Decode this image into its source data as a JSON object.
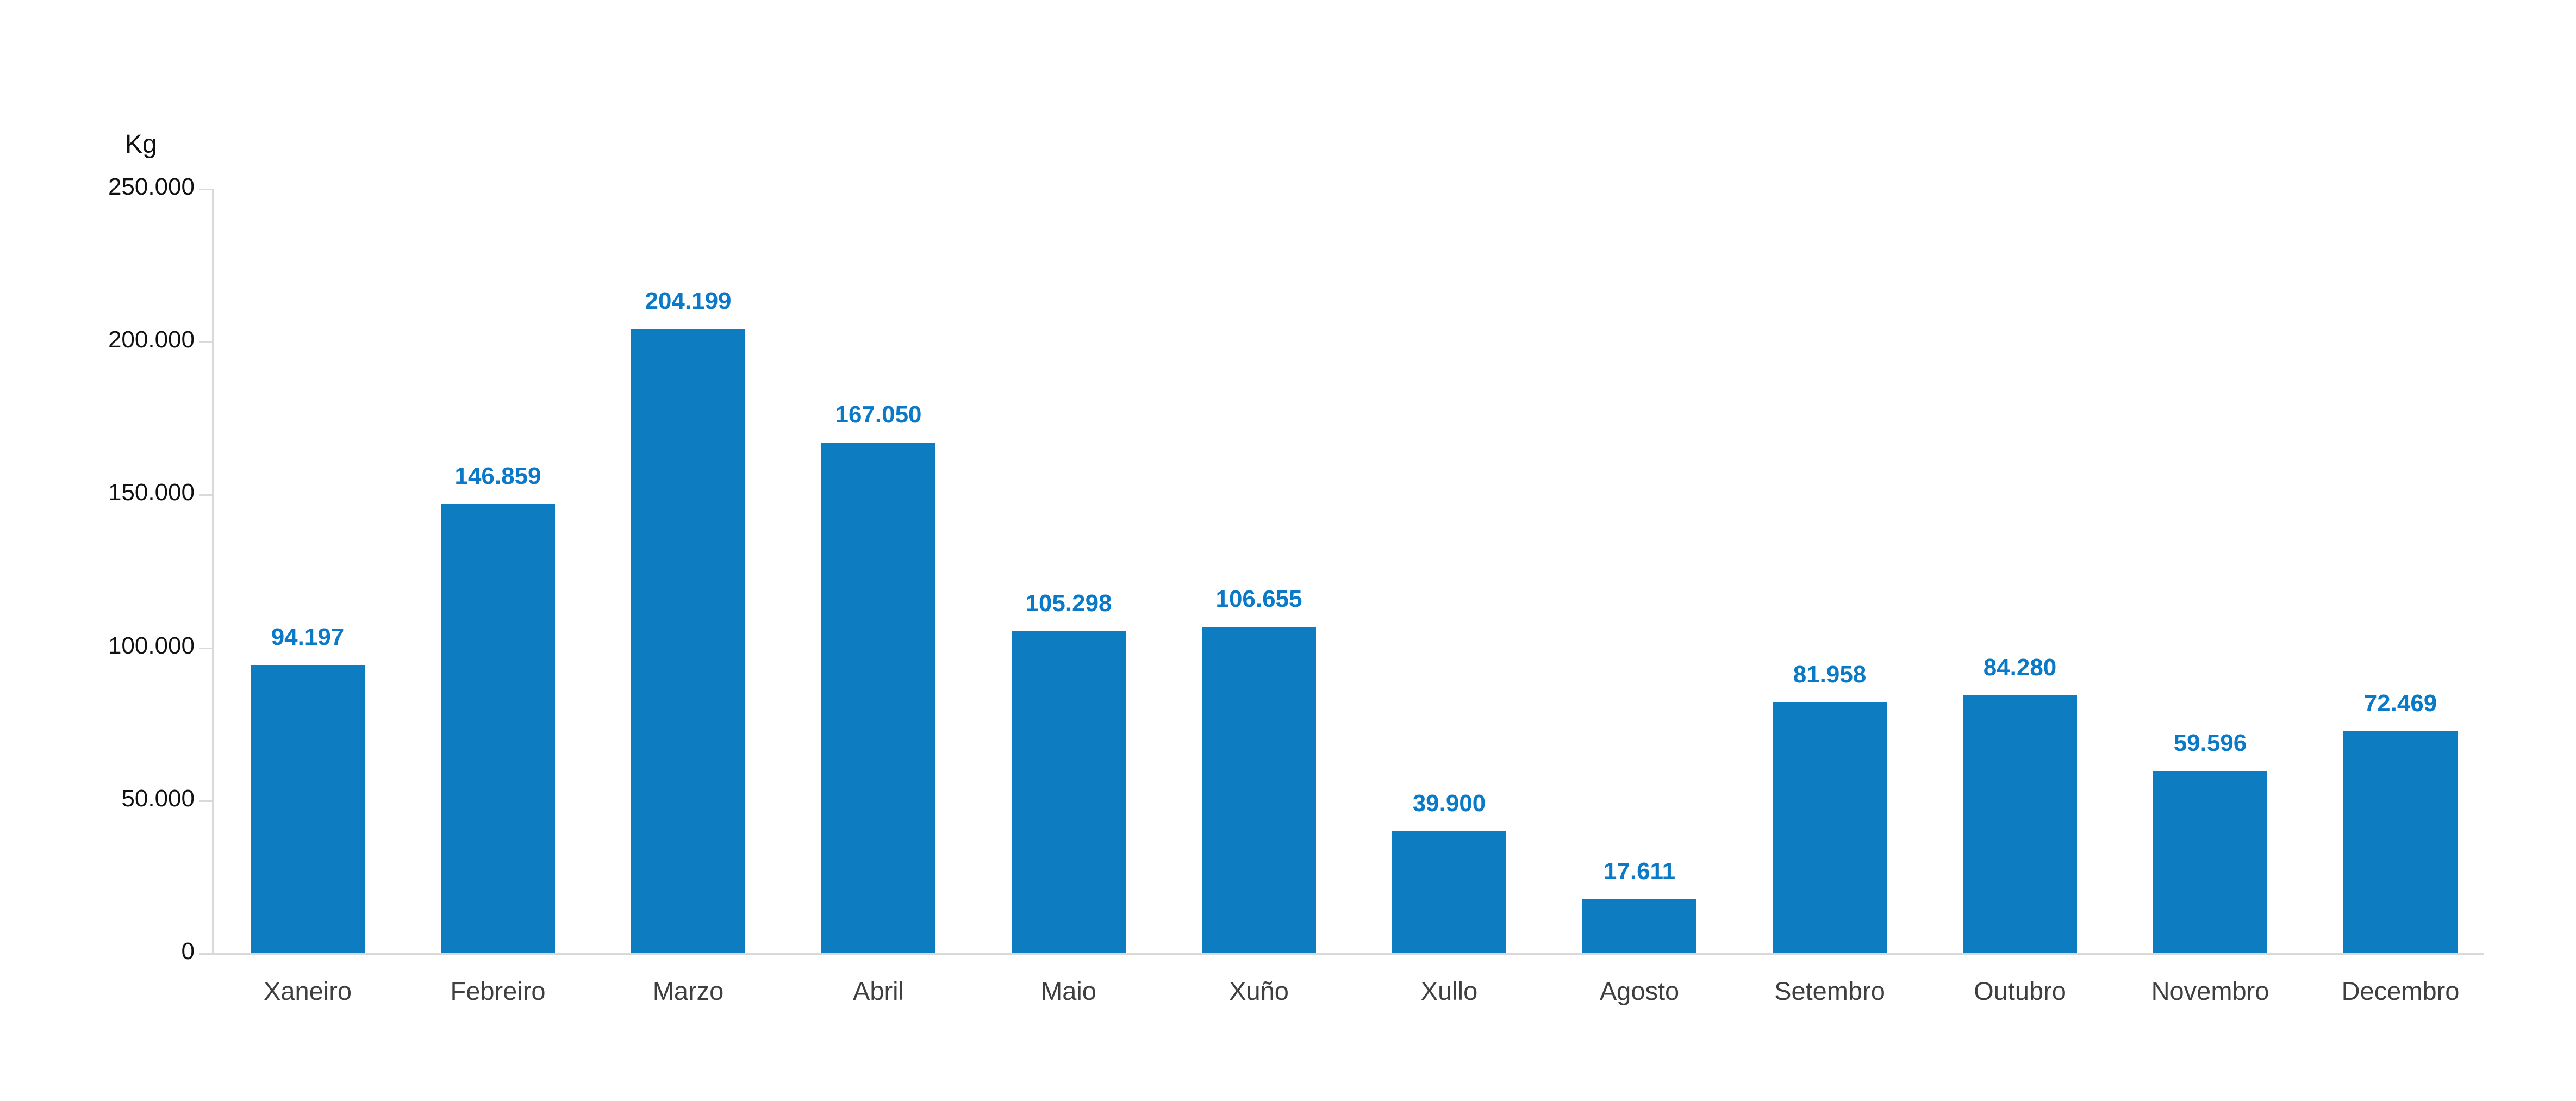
{
  "page": {
    "background_color": "#ffffff"
  },
  "chart_data": {
    "type": "bar",
    "title": "",
    "xlabel": "",
    "ylabel": "Kg",
    "categories": [
      "Xaneiro",
      "Febreiro",
      "Marzo",
      "Abril",
      "Maio",
      "Xuño",
      "Xullo",
      "Agosto",
      "Setembro",
      "Outubro",
      "Novembro",
      "Decembro"
    ],
    "values": [
      94197,
      146859,
      204199,
      167050,
      105298,
      106655,
      39900,
      17611,
      81958,
      84280,
      59596,
      72469
    ],
    "value_labels": [
      "94.197",
      "146.859",
      "204.199",
      "167.050",
      "105.298",
      "106.655",
      "39.900",
      "17.611",
      "81.958",
      "84.280",
      "59.596",
      "72.469"
    ],
    "ylim": [
      0,
      250000
    ],
    "yticks": [
      {
        "value": 0,
        "label": "0"
      },
      {
        "value": 50000,
        "label": "50.000"
      },
      {
        "value": 100000,
        "label": "100.000"
      },
      {
        "value": 150000,
        "label": "150.000"
      },
      {
        "value": 200000,
        "label": "200.000"
      },
      {
        "value": 250000,
        "label": "250.000"
      }
    ],
    "grid": false,
    "legend_position": "none",
    "colors": {
      "bar": "#0e7cc1",
      "value_label": "#0a79c7",
      "axis_line": "#d9d9d9",
      "y_tick_label": "#111111",
      "category_label": "#3f3f3f",
      "y_axis_title": "#111111"
    }
  }
}
